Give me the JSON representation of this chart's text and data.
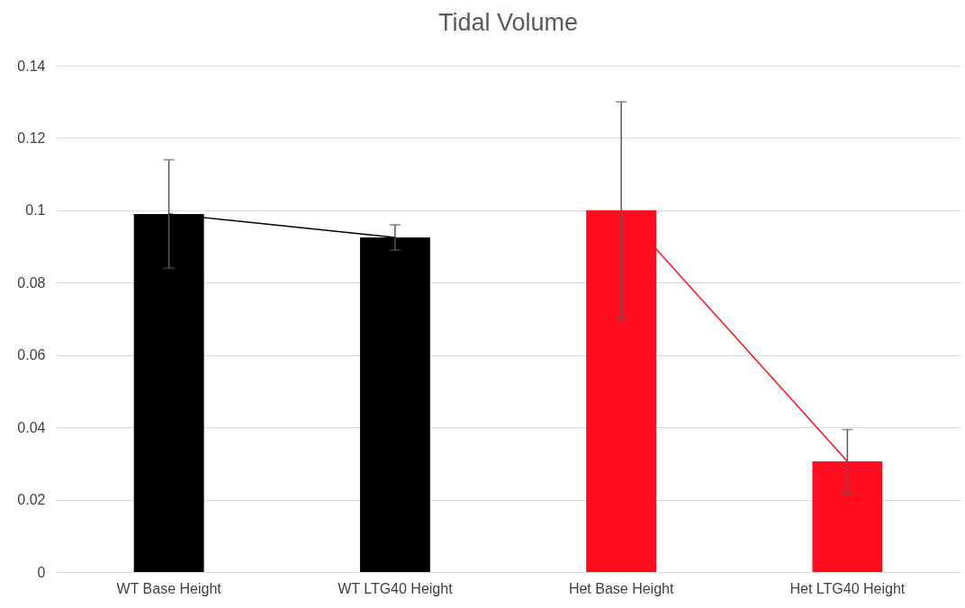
{
  "chart_data": {
    "type": "bar",
    "title": "Tidal Volume",
    "categories": [
      "WT Base Height",
      "WT LTG40 Height",
      "Het Base Height",
      "Het LTG40 Height"
    ],
    "series": [
      {
        "colors": [
          "#000000",
          "#000000",
          "#ff0d1f",
          "#ff0d1f"
        ],
        "values": [
          0.099,
          0.0925,
          0.1,
          0.0306
        ],
        "errors": [
          0.015,
          0.0035,
          0.03,
          0.0088
        ]
      },
      {
        "type": "line",
        "x": [
          "WT Base Height",
          "WT LTG40 Height"
        ],
        "values": [
          0.099,
          0.0925
        ],
        "color": "#000000"
      },
      {
        "type": "line",
        "x": [
          "Het Base Height",
          "Het LTG40 Height"
        ],
        "values": [
          0.1,
          0.0306
        ],
        "color": "#ff0d1f"
      }
    ],
    "ylim": [
      0,
      0.14
    ],
    "yticks": [
      0,
      0.02,
      0.04,
      0.06,
      0.08,
      0.1,
      0.12,
      0.14
    ],
    "grid": "y",
    "marker": "none",
    "line_style": "solid"
  }
}
